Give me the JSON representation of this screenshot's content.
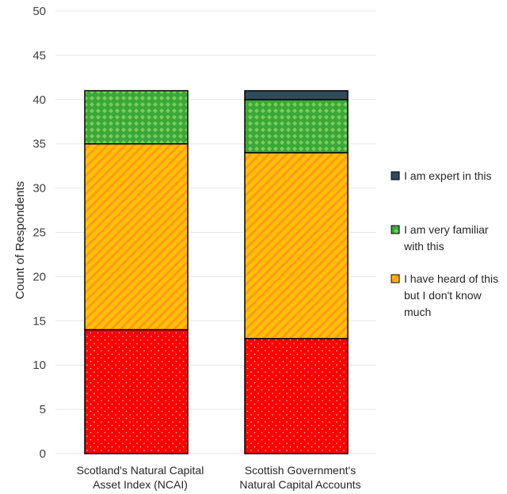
{
  "chart_data": {
    "type": "bar",
    "stacked": true,
    "categories": [
      [
        "Scotland's Natural Capital",
        "Asset Index (NCAI)"
      ],
      [
        "Scottish Government's",
        "Natural Capital Accounts"
      ]
    ],
    "series": [
      {
        "name": "I have heard of this but I don't know much",
        "legend_lines": [
          "I have heard of this",
          "but I don't know",
          "much"
        ],
        "segments": [
          {
            "values": [
              14,
              13
            ],
            "color": "#ff0000",
            "pattern": "dots"
          },
          {
            "values": [
              21,
              21
            ],
            "color": "#ffc000",
            "pattern": "diagonal-stripes"
          }
        ],
        "legend_color": "#ffc000",
        "legend_pattern": "diagonal-stripes"
      },
      {
        "name": "I am very familiar with this",
        "legend_lines": [
          "I am very familiar",
          "with this"
        ],
        "segments": [
          {
            "values": [
              6,
              6
            ],
            "color": "#38a838",
            "pattern": "diamonds"
          }
        ],
        "legend_color": "#38a838",
        "legend_pattern": "diamonds"
      },
      {
        "name": "I am expert in this",
        "legend_lines": [
          "I am expert in this"
        ],
        "segments": [
          {
            "values": [
              0,
              1
            ],
            "color": "#2f4b5c",
            "pattern": "solid"
          }
        ],
        "legend_color": "#2f4b5c",
        "legend_pattern": "solid"
      }
    ],
    "ylabel": "Count of Respondents",
    "xlabel": "",
    "title": "",
    "ylim": [
      0,
      50
    ],
    "yticks": [
      0,
      5,
      10,
      15,
      20,
      25,
      30,
      35,
      40,
      45,
      50
    ],
    "grid": true,
    "legend_position": "right",
    "legend_order": [
      "I am expert in this",
      "I am very familiar with this",
      "I have heard of this but I don't know much"
    ]
  }
}
